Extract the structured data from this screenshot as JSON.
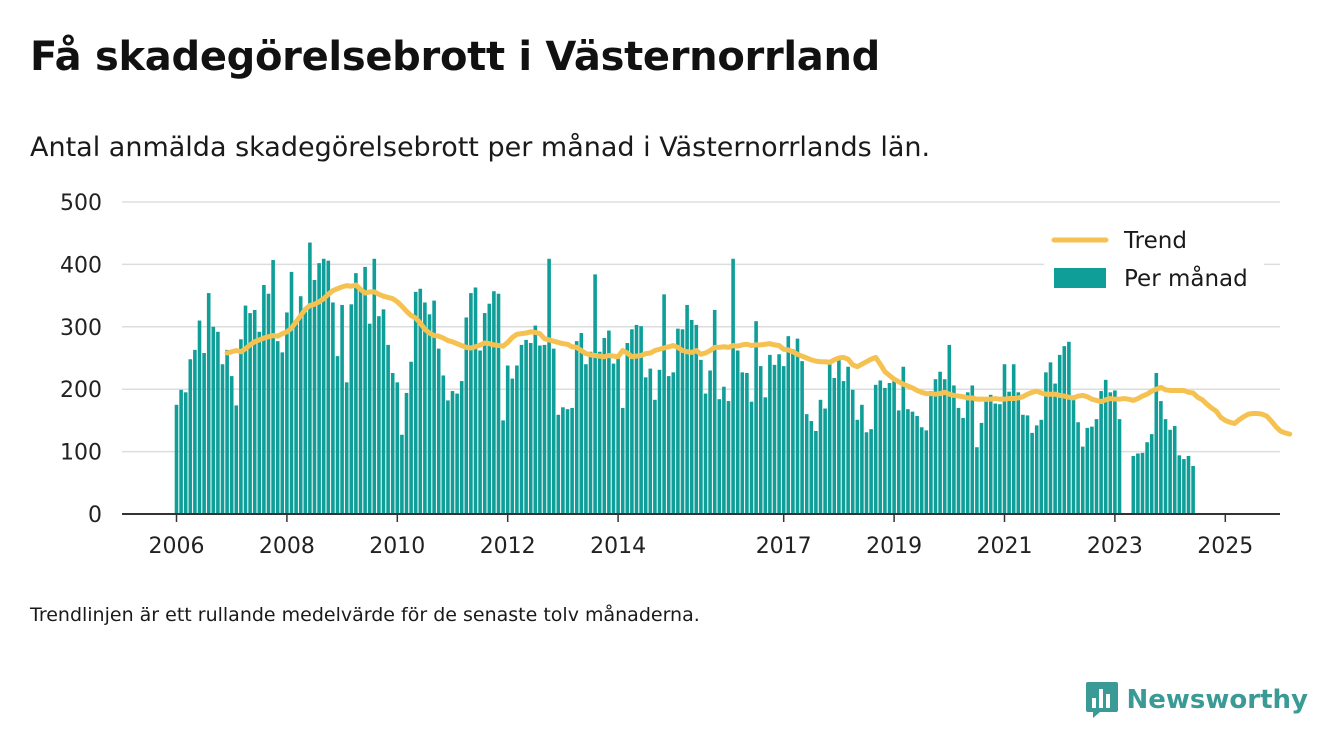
{
  "page": {
    "title": "Få skadegörelsebrott i Västernorrland",
    "subtitle": "Antal anmälda skadegörelsebrott per månad i Västernorrlands län.",
    "footnote": "Trendlinjen är ett rullande medelvärde för de senaste tolv månaderna.",
    "brand": "Newsworthy"
  },
  "colors": {
    "bars": "#0f9e98",
    "trend": "#f5c251",
    "grid": "#dddddd",
    "axis": "#333333",
    "brand": "#3a9a96"
  },
  "icons": {
    "brand_logo": "bar-chart-speech-bubble-icon"
  },
  "chart_data": {
    "type": "bar",
    "x_type": "date",
    "ylim": [
      0,
      500
    ],
    "yticks": [
      0,
      100,
      200,
      300,
      400,
      500
    ],
    "xticks": [
      "2006",
      "2008",
      "2010",
      "2012",
      "2014",
      "2017",
      "2019",
      "2021",
      "2023",
      "2025"
    ],
    "grid": true,
    "legend": {
      "placement": "top-right",
      "entries": [
        "Trend",
        "Per månad"
      ]
    },
    "series": [
      {
        "name": "Per månad",
        "type": "bar",
        "start": "2006-01",
        "values": [
          175,
          199,
          195,
          248,
          263,
          310,
          258,
          354,
          300,
          292,
          240,
          263,
          221,
          174,
          280,
          334,
          322,
          327,
          292,
          367,
          353,
          407,
          277,
          259,
          323,
          388,
          306,
          349,
          324,
          435,
          375,
          402,
          409,
          406,
          339,
          253,
          335,
          211,
          336,
          386,
          363,
          396,
          305,
          409,
          317,
          328,
          271,
          226,
          211,
          127,
          194,
          244,
          356,
          361,
          339,
          320,
          342,
          265,
          222,
          182,
          197,
          193,
          213,
          315,
          354,
          363,
          262,
          322,
          337,
          357,
          353,
          150,
          238,
          217,
          238,
          271,
          279,
          274,
          302,
          270,
          271,
          409,
          265,
          159,
          171,
          168,
          170,
          277,
          290,
          240,
          260,
          384,
          260,
          282,
          294,
          241,
          250,
          170,
          274,
          296,
          303,
          301,
          219,
          233,
          183,
          231,
          352,
          221,
          227,
          297,
          296,
          335,
          311,
          303,
          247,
          193,
          230,
          327,
          184,
          204,
          181,
          409,
          262,
          227,
          226,
          180,
          309,
          237,
          187,
          255,
          239,
          256,
          237,
          285,
          264,
          281,
          245,
          160,
          149,
          133,
          183,
          169,
          246,
          218,
          247,
          213,
          236,
          199,
          151,
          175,
          131,
          136,
          207,
          214,
          202,
          210,
          214,
          166,
          236,
          168,
          164,
          157,
          139,
          134,
          197,
          216,
          228,
          216,
          271,
          206,
          170,
          154,
          195,
          206,
          107,
          146,
          180,
          191,
          177,
          176,
          240,
          196,
          240,
          195,
          159,
          158,
          130,
          142,
          151,
          227,
          243,
          209,
          255,
          269,
          276,
          190,
          147,
          108,
          138,
          140,
          152,
          197,
          215,
          195,
          198,
          152,
          0,
          0,
          93,
          97,
          98,
          115,
          128,
          226,
          181,
          152,
          135,
          141,
          94,
          88,
          93,
          77
        ]
      },
      {
        "name": "Trend",
        "type": "line",
        "start": "2006-12",
        "values": [
          258,
          260,
          262,
          260,
          265,
          271,
          276,
          279,
          282,
          284,
          286,
          285,
          289,
          292,
          298,
          308,
          318,
          328,
          334,
          336,
          340,
          345,
          352,
          358,
          361,
          364,
          366,
          365,
          367,
          360,
          354,
          356,
          356,
          352,
          349,
          347,
          345,
          340,
          333,
          325,
          318,
          314,
          306,
          296,
          290,
          286,
          285,
          282,
          278,
          276,
          273,
          270,
          267,
          266,
          268,
          271,
          274,
          273,
          271,
          270,
          269,
          275,
          283,
          288,
          289,
          290,
          292,
          291,
          289,
          281,
          279,
          277,
          275,
          273,
          272,
          268,
          267,
          262,
          257,
          255,
          254,
          253,
          252,
          254,
          253,
          252,
          262,
          258,
          252,
          253,
          254,
          257,
          258,
          262,
          264,
          266,
          268,
          270,
          267,
          262,
          260,
          259,
          262,
          256,
          258,
          262,
          267,
          267,
          268,
          267,
          270,
          269,
          271,
          272,
          270,
          271,
          271,
          272,
          273,
          271,
          270,
          264,
          263,
          260,
          256,
          253,
          250,
          247,
          245,
          244,
          244,
          243,
          247,
          250,
          251,
          248,
          239,
          236,
          240,
          244,
          248,
          251,
          240,
          228,
          222,
          216,
          212,
          208,
          205,
          202,
          198,
          195,
          193,
          193,
          192,
          193,
          195,
          192,
          190,
          189,
          188,
          186,
          186,
          184,
          184,
          184,
          184,
          185,
          184,
          184,
          185,
          185,
          186,
          188,
          192,
          195,
          197,
          194,
          192,
          192,
          192,
          190,
          189,
          187,
          186,
          189,
          190,
          188,
          184,
          182,
          180,
          183,
          185,
          184,
          184,
          185,
          184,
          182,
          185,
          189,
          192,
          197,
          200,
          203,
          199,
          198,
          198,
          198,
          198,
          195,
          194,
          187,
          183,
          176,
          170,
          165,
          155,
          150,
          147,
          145,
          151,
          156,
          160,
          161,
          161,
          160,
          157,
          149,
          140,
          133,
          130,
          128
        ]
      }
    ]
  }
}
